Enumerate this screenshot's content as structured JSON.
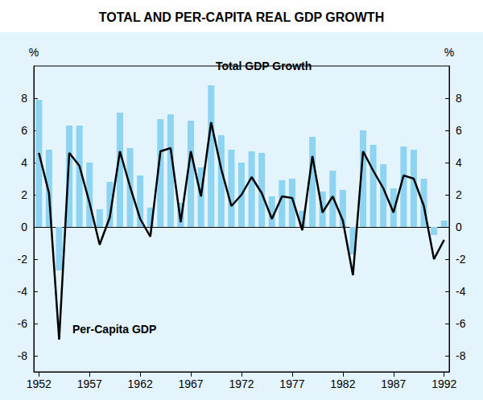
{
  "chart_data": {
    "type": "bar",
    "title": "TOTAL AND PER-CAPITA REAL GDP GROWTH",
    "ylabel": "%",
    "y2label": "%",
    "categories": [
      "1952",
      null,
      null,
      null,
      null,
      "1957",
      null,
      null,
      null,
      null,
      "1962",
      null,
      null,
      null,
      null,
      "1967",
      null,
      null,
      null,
      null,
      "1972",
      null,
      null,
      null,
      null,
      "1977",
      null,
      null,
      null,
      null,
      "1982",
      null,
      null,
      null,
      null,
      "1987",
      null,
      null,
      null,
      null,
      "1992"
    ],
    "series": [
      {
        "name": "Total GDP Growth",
        "type": "bar",
        "color": "#8dd3f2",
        "values": [
          7.9,
          4.8,
          -2.7,
          6.3,
          6.3,
          4.0,
          1.1,
          2.8,
          7.1,
          4.9,
          3.2,
          1.2,
          6.7,
          7.0,
          1.5,
          6.6,
          3.7,
          8.8,
          5.7,
          4.8,
          4.0,
          4.7,
          4.6,
          1.9,
          2.9,
          3.0,
          1.0,
          5.6,
          2.2,
          3.5,
          2.3,
          -1.7,
          6.0,
          5.1,
          3.9,
          2.4,
          5.0,
          4.8,
          3.0,
          -0.5,
          0.4
        ]
      },
      {
        "name": "Per-Capita GDP",
        "type": "line",
        "color": "#000000",
        "values": [
          4.6,
          2.1,
          -7.0,
          4.6,
          3.8,
          1.5,
          -1.1,
          0.6,
          4.7,
          2.5,
          0.5,
          -0.6,
          4.7,
          4.9,
          0.3,
          4.7,
          1.9,
          6.5,
          3.6,
          1.3,
          2.0,
          3.1,
          2.1,
          0.5,
          1.9,
          1.8,
          -0.2,
          4.4,
          0.9,
          1.9,
          0.4,
          -3.0,
          4.7,
          3.5,
          2.4,
          0.9,
          3.2,
          3.0,
          1.3,
          -2.0,
          -0.8
        ]
      }
    ],
    "ylim": [
      -9,
      10
    ],
    "yticks": [
      -8,
      -6,
      -4,
      -2,
      0,
      2,
      4,
      6,
      8
    ],
    "y2lim": [
      -9,
      10
    ],
    "y2ticks": [
      -8,
      -6,
      -4,
      -2,
      0,
      2,
      4,
      6,
      8
    ],
    "grid": false
  }
}
